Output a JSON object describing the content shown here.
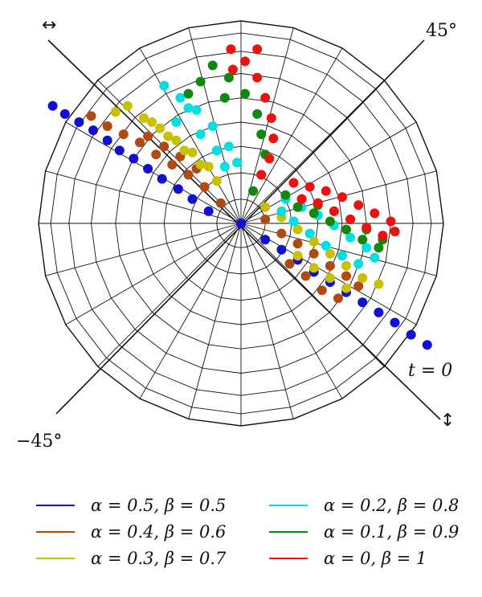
{
  "chart_data": {
    "type": "scatter",
    "projection": "polar",
    "annotations": {
      "top_left_symbol": "↔",
      "angle_pos": "45°",
      "angle_neg": "−45°",
      "time_label": "t = 0",
      "bottom_right_symbol": "↕"
    },
    "series": [
      {
        "name": "α = 0.5, β = 0.5",
        "color": "#1010d0",
        "points": [
          [
            -0.93,
            0.58
          ],
          [
            -0.87,
            0.54
          ],
          [
            -0.8,
            0.5
          ],
          [
            -0.73,
            0.46
          ],
          [
            -0.66,
            0.41
          ],
          [
            -0.6,
            0.36
          ],
          [
            -0.53,
            0.32
          ],
          [
            -0.46,
            0.27
          ],
          [
            -0.39,
            0.22
          ],
          [
            -0.31,
            0.17
          ],
          [
            -0.24,
            0.12
          ],
          [
            -0.16,
            0.06
          ],
          [
            0.0,
            0.0
          ],
          [
            0.12,
            -0.08
          ],
          [
            0.2,
            -0.13
          ],
          [
            0.28,
            -0.18
          ],
          [
            0.36,
            -0.24
          ],
          [
            0.44,
            -0.29
          ],
          [
            0.52,
            -0.34
          ],
          [
            0.6,
            -0.39
          ],
          [
            0.68,
            -0.44
          ],
          [
            0.76,
            -0.49
          ],
          [
            0.84,
            -0.55
          ],
          [
            0.92,
            -0.6
          ]
        ]
      },
      {
        "name": "α = 0.4, β = 0.6",
        "color": "#b04a10",
        "points": [
          [
            -0.74,
            0.53
          ],
          [
            -0.66,
            0.48
          ],
          [
            -0.58,
            0.44
          ],
          [
            -0.5,
            0.4
          ],
          [
            -0.42,
            0.34
          ],
          [
            -0.34,
            0.29
          ],
          [
            -0.26,
            0.24
          ],
          [
            -0.18,
            0.18
          ],
          [
            -0.1,
            0.1
          ],
          [
            0.12,
            0.02
          ],
          [
            0.2,
            -0.05
          ],
          [
            0.28,
            -0.1
          ],
          [
            0.36,
            -0.15
          ],
          [
            0.44,
            -0.21
          ],
          [
            0.52,
            -0.26
          ],
          [
            0.58,
            -0.31
          ],
          [
            0.48,
            -0.37
          ],
          [
            0.4,
            -0.33
          ],
          [
            0.32,
            -0.26
          ],
          [
            0.24,
            -0.2
          ],
          [
            -0.22,
            0.27
          ],
          [
            -0.3,
            0.33
          ],
          [
            -0.38,
            0.38
          ],
          [
            -0.46,
            0.43
          ]
        ]
      },
      {
        "name": "α = 0.3, β = 0.7",
        "color": "#c8c000",
        "points": [
          [
            -0.56,
            0.58
          ],
          [
            -0.48,
            0.52
          ],
          [
            -0.4,
            0.47
          ],
          [
            -0.32,
            0.41
          ],
          [
            -0.24,
            0.35
          ],
          [
            -0.16,
            0.28
          ],
          [
            0.12,
            0.08
          ],
          [
            0.2,
            0.03
          ],
          [
            0.28,
            -0.03
          ],
          [
            0.36,
            -0.09
          ],
          [
            0.44,
            -0.15
          ],
          [
            0.52,
            -0.21
          ],
          [
            0.6,
            -0.27
          ],
          [
            0.52,
            -0.32
          ],
          [
            0.44,
            -0.27
          ],
          [
            0.36,
            -0.22
          ],
          [
            0.28,
            -0.16
          ],
          [
            -0.12,
            0.21
          ],
          [
            -0.2,
            0.29
          ],
          [
            -0.28,
            0.36
          ],
          [
            -0.36,
            0.43
          ],
          [
            -0.44,
            0.5
          ],
          [
            -0.62,
            0.55
          ],
          [
            0.68,
            -0.3
          ]
        ]
      },
      {
        "name": "α = 0.2, β = 0.8",
        "color": "#00e0e0",
        "points": [
          [
            -0.38,
            0.68
          ],
          [
            -0.3,
            0.62
          ],
          [
            -0.22,
            0.56
          ],
          [
            -0.14,
            0.48
          ],
          [
            -0.06,
            0.38
          ],
          [
            -0.26,
            0.57
          ],
          [
            -0.2,
            0.44
          ],
          [
            -0.12,
            0.36
          ],
          [
            0.22,
            0.12
          ],
          [
            0.3,
            0.08
          ],
          [
            0.38,
            0.04
          ],
          [
            0.46,
            -0.01
          ],
          [
            0.54,
            -0.07
          ],
          [
            0.62,
            -0.12
          ],
          [
            0.66,
            -0.17
          ],
          [
            0.58,
            -0.2
          ],
          [
            0.5,
            -0.16
          ],
          [
            0.42,
            -0.11
          ],
          [
            0.34,
            -0.05
          ],
          [
            0.26,
            0.01
          ],
          [
            0.2,
            0.06
          ],
          [
            -0.02,
            0.3
          ],
          [
            -0.08,
            0.28
          ],
          [
            -0.32,
            0.5
          ]
        ]
      },
      {
        "name": "α = 0.1, β = 0.9",
        "color": "#108810",
        "points": [
          [
            -0.14,
            0.78
          ],
          [
            -0.06,
            0.72
          ],
          [
            0.02,
            0.64
          ],
          [
            0.08,
            0.54
          ],
          [
            0.1,
            0.44
          ],
          [
            0.12,
            0.34
          ],
          [
            0.1,
            0.24
          ],
          [
            0.06,
            0.16
          ],
          [
            0.22,
            0.14
          ],
          [
            0.3,
            0.12
          ],
          [
            0.38,
            0.09
          ],
          [
            0.46,
            0.06
          ],
          [
            0.54,
            0.02
          ],
          [
            0.62,
            -0.03
          ],
          [
            0.7,
            -0.08
          ],
          [
            0.68,
            -0.12
          ],
          [
            0.6,
            -0.08
          ],
          [
            0.52,
            -0.03
          ],
          [
            0.44,
            0.01
          ],
          [
            0.36,
            0.05
          ],
          [
            0.28,
            0.08
          ],
          [
            -0.08,
            0.62
          ],
          [
            -0.2,
            0.7
          ],
          [
            -0.26,
            0.64
          ]
        ]
      },
      {
        "name": "α = 0, β = 1",
        "color": "#ee1111",
        "points": [
          [
            -0.05,
            0.86
          ],
          [
            0.02,
            0.8
          ],
          [
            0.08,
            0.72
          ],
          [
            0.12,
            0.62
          ],
          [
            0.15,
            0.52
          ],
          [
            0.16,
            0.42
          ],
          [
            0.14,
            0.32
          ],
          [
            0.1,
            0.24
          ],
          [
            0.26,
            0.2
          ],
          [
            0.34,
            0.18
          ],
          [
            0.42,
            0.16
          ],
          [
            0.5,
            0.13
          ],
          [
            0.58,
            0.09
          ],
          [
            0.66,
            0.05
          ],
          [
            0.74,
            0.01
          ],
          [
            0.76,
            -0.04
          ],
          [
            0.7,
            -0.06
          ],
          [
            0.62,
            -0.02
          ],
          [
            0.54,
            0.02
          ],
          [
            0.46,
            0.06
          ],
          [
            0.38,
            0.1
          ],
          [
            0.3,
            0.12
          ],
          [
            -0.04,
            0.76
          ],
          [
            0.08,
            0.86
          ]
        ]
      }
    ],
    "legend": {
      "placement": "bottom",
      "columns": 2
    }
  }
}
